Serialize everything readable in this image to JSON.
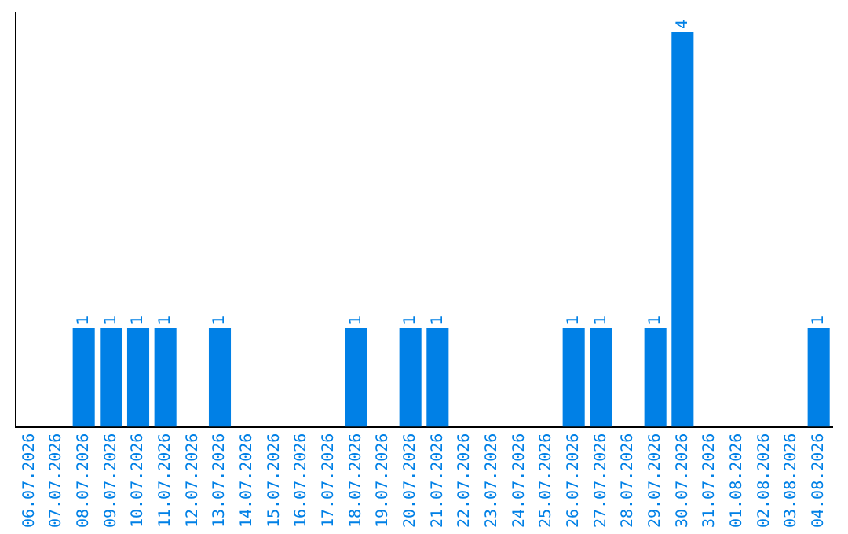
{
  "chart_data": {
    "type": "bar",
    "relative": false,
    "categories": [
      "06.07.2026",
      "07.07.2026",
      "08.07.2026",
      "09.07.2026",
      "10.07.2026",
      "11.07.2026",
      "12.07.2026",
      "13.07.2026",
      "14.07.2026",
      "15.07.2026",
      "16.07.2026",
      "17.07.2026",
      "18.07.2026",
      "19.07.2026",
      "20.07.2026",
      "21.07.2026",
      "22.07.2026",
      "23.07.2026",
      "24.07.2026",
      "25.07.2026",
      "26.07.2026",
      "27.07.2026",
      "28.07.2026",
      "29.07.2026",
      "30.07.2026",
      "31.07.2026",
      "01.08.2026",
      "02.08.2026",
      "03.08.2026",
      "04.08.2026"
    ],
    "values": [
      0,
      0,
      1,
      1,
      1,
      1,
      0,
      1,
      0,
      0,
      0,
      0,
      1,
      0,
      1,
      1,
      0,
      0,
      0,
      0,
      1,
      1,
      0,
      1,
      4,
      0,
      0,
      0,
      0,
      1
    ],
    "value_labels": [
      null,
      null,
      "1",
      "1",
      "1",
      "1",
      null,
      "1",
      null,
      null,
      null,
      null,
      "1",
      null,
      "1",
      "1",
      null,
      null,
      null,
      null,
      "1",
      "1",
      null,
      "1",
      "4",
      null,
      null,
      null,
      null,
      "1"
    ],
    "color": "#0080e6",
    "grid": false,
    "legend": false
  }
}
